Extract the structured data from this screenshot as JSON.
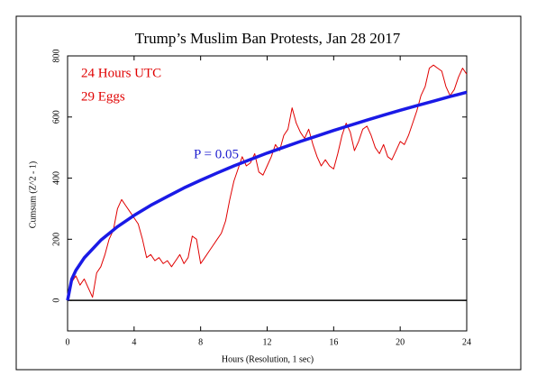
{
  "chart_data": {
    "type": "line",
    "title": "Trump’s Muslim Ban Protests, Jan 28 2017",
    "x_label": "Hours (Resolution, 1 sec)",
    "y_label": "Cumsum (Z^2 - 1)",
    "annotations": [
      {
        "text": "24 Hours UTC",
        "color": "#e00000"
      },
      {
        "text": "29 Eggs",
        "color": "#e00000"
      },
      {
        "text": "P = 0.05",
        "color": "#2020d0"
      }
    ],
    "xlim": [
      0,
      24
    ],
    "xticks": [
      0,
      4,
      8,
      12,
      16,
      20,
      24
    ],
    "ylim": [
      -100,
      800
    ],
    "yticks": [
      0,
      200,
      400,
      600,
      800
    ],
    "zero_line": true,
    "series": [
      {
        "color": "#e00000",
        "width": 1,
        "x": [
          0,
          0.25,
          0.5,
          0.75,
          1,
          1.25,
          1.5,
          1.75,
          2,
          2.25,
          2.5,
          2.75,
          3,
          3.25,
          3.5,
          3.75,
          4,
          4.25,
          4.5,
          4.75,
          5,
          5.25,
          5.5,
          5.75,
          6,
          6.25,
          6.5,
          6.75,
          7,
          7.25,
          7.5,
          7.75,
          8,
          8.25,
          8.5,
          8.75,
          9,
          9.25,
          9.5,
          9.75,
          10,
          10.25,
          10.5,
          10.75,
          11,
          11.25,
          11.5,
          11.75,
          12,
          12.25,
          12.5,
          12.75,
          13,
          13.25,
          13.5,
          13.75,
          14,
          14.25,
          14.5,
          14.75,
          15,
          15.25,
          15.5,
          15.75,
          16,
          16.25,
          16.5,
          16.75,
          17,
          17.25,
          17.5,
          17.75,
          18,
          18.25,
          18.5,
          18.75,
          19,
          19.25,
          19.5,
          19.75,
          20,
          20.25,
          20.5,
          20.75,
          21,
          21.25,
          21.5,
          21.75,
          22,
          22.25,
          22.5,
          22.75,
          23,
          23.25,
          23.5,
          23.75,
          24
        ],
        "values": [
          20,
          60,
          80,
          50,
          70,
          40,
          10,
          90,
          110,
          150,
          200,
          230,
          300,
          330,
          310,
          290,
          270,
          250,
          200,
          140,
          150,
          130,
          140,
          120,
          130,
          110,
          130,
          150,
          120,
          140,
          210,
          200,
          120,
          140,
          160,
          180,
          200,
          220,
          260,
          330,
          390,
          430,
          470,
          440,
          450,
          480,
          420,
          410,
          440,
          470,
          510,
          490,
          540,
          560,
          630,
          580,
          550,
          530,
          560,
          510,
          470,
          440,
          460,
          440,
          430,
          480,
          540,
          580,
          550,
          490,
          520,
          560,
          570,
          540,
          500,
          480,
          510,
          470,
          460,
          490,
          520,
          510,
          540,
          580,
          620,
          670,
          700,
          760,
          770,
          760,
          750,
          700,
          670,
          690,
          730,
          760,
          740
        ]
      },
      {
        "color": "#1a1ae6",
        "width": 3.5,
        "x": [
          0,
          0.25,
          0.5,
          1,
          2,
          3,
          4,
          5,
          6,
          7,
          8,
          9,
          10,
          11,
          12,
          13,
          14,
          15,
          16,
          17,
          18,
          19,
          20,
          21,
          22,
          23,
          24
        ],
        "values": [
          0,
          69,
          98,
          139,
          197,
          241,
          278,
          311,
          340,
          368,
          393,
          417,
          440,
          461,
          482,
          501,
          520,
          538,
          556,
          573,
          590,
          606,
          622,
          637,
          652,
          667,
          681
        ]
      }
    ]
  }
}
